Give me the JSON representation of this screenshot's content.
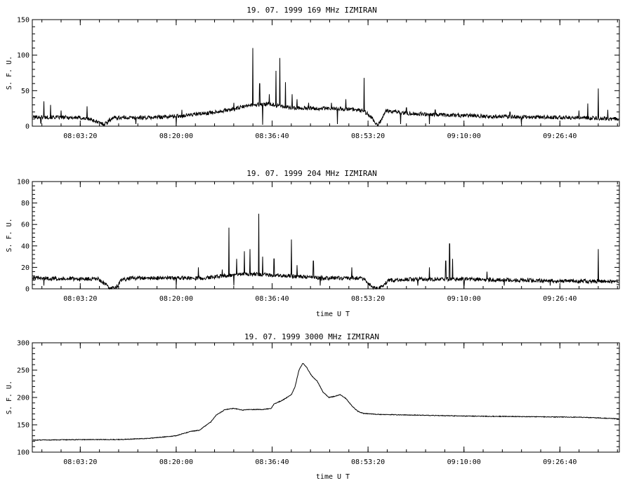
{
  "chart_data": [
    {
      "type": "line",
      "title": "19. 07. 1999   169 MHz   IZMIRAN",
      "ylabel": "S. F. U.",
      "xlabel": "",
      "ylim": [
        0,
        150
      ],
      "yticks": [
        0,
        50,
        100,
        150
      ],
      "xlim": [
        "07:55:00",
        "09:37:00"
      ],
      "xticks": [
        "08:03:20",
        "08:20:00",
        "08:36:40",
        "08:53:20",
        "09:10:00",
        "09:26:40"
      ],
      "grid": false,
      "baseline": [
        [
          "07:55:00",
          13
        ],
        [
          "08:03:00",
          12
        ],
        [
          "08:05:00",
          10
        ],
        [
          "08:06:30",
          5
        ],
        [
          "08:07:30",
          3
        ],
        [
          "08:09:00",
          12
        ],
        [
          "08:15:00",
          12
        ],
        [
          "08:20:00",
          14
        ],
        [
          "08:25:00",
          18
        ],
        [
          "08:30:00",
          24
        ],
        [
          "08:33:00",
          30
        ],
        [
          "08:36:00",
          31
        ],
        [
          "08:40:00",
          26
        ],
        [
          "08:45:00",
          25
        ],
        [
          "08:50:00",
          24
        ],
        [
          "08:52:30",
          22
        ],
        [
          "08:54:00",
          12
        ],
        [
          "08:55:00",
          0
        ],
        [
          "08:56:30",
          22
        ],
        [
          "09:00:00",
          18
        ],
        [
          "09:10:00",
          15
        ],
        [
          "09:20:00",
          13
        ],
        [
          "09:30:00",
          12
        ],
        [
          "09:37:00",
          10
        ]
      ],
      "spikes": [
        [
          "07:57:00",
          35
        ],
        [
          "07:58:10",
          30
        ],
        [
          "08:00:00",
          22
        ],
        [
          "08:04:30",
          28
        ],
        [
          "08:21:00",
          23
        ],
        [
          "08:30:00",
          33
        ],
        [
          "08:33:20",
          110
        ],
        [
          "08:34:30",
          60
        ],
        [
          "08:36:10",
          45
        ],
        [
          "08:37:20",
          78
        ],
        [
          "08:38:00",
          96
        ],
        [
          "08:39:00",
          62
        ],
        [
          "08:40:10",
          45
        ],
        [
          "08:41:00",
          38
        ],
        [
          "08:43:00",
          33
        ],
        [
          "08:47:00",
          33
        ],
        [
          "08:49:30",
          38
        ],
        [
          "08:52:40",
          68
        ],
        [
          "09:00:00",
          26
        ],
        [
          "09:05:00",
          23
        ],
        [
          "09:18:00",
          20
        ],
        [
          "09:30:00",
          22
        ],
        [
          "09:31:30",
          32
        ],
        [
          "09:33:20",
          53
        ],
        [
          "09:35:00",
          23
        ]
      ],
      "dips": [
        [
          "07:56:30",
          4
        ],
        [
          "08:08:00",
          2
        ],
        [
          "08:13:00",
          3
        ],
        [
          "08:20:00",
          2
        ],
        [
          "08:35:00",
          2
        ],
        [
          "08:48:00",
          3
        ],
        [
          "08:59:00",
          3
        ],
        [
          "09:04:00",
          3
        ],
        [
          "09:20:00",
          3
        ]
      ]
    },
    {
      "type": "line",
      "title": "19. 07. 1999   204 MHz   IZMIRAN",
      "ylabel": "S. F. U.",
      "xlabel": "time  U T",
      "ylim": [
        0,
        100
      ],
      "yticks": [
        0,
        20,
        40,
        60,
        80,
        100
      ],
      "xlim": [
        "07:55:00",
        "09:37:00"
      ],
      "xticks": [
        "08:03:20",
        "08:20:00",
        "08:36:40",
        "08:53:20",
        "09:10:00",
        "09:26:40"
      ],
      "grid": false,
      "baseline": [
        [
          "07:55:00",
          10
        ],
        [
          "08:06:30",
          9
        ],
        [
          "08:07:30",
          5
        ],
        [
          "08:08:30",
          0
        ],
        [
          "08:09:30",
          1
        ],
        [
          "08:10:30",
          8
        ],
        [
          "08:12:00",
          10
        ],
        [
          "08:25:00",
          10
        ],
        [
          "08:28:00",
          12
        ],
        [
          "08:32:00",
          14
        ],
        [
          "08:36:00",
          13
        ],
        [
          "08:40:00",
          12
        ],
        [
          "08:45:00",
          10
        ],
        [
          "08:52:00",
          10
        ],
        [
          "08:53:00",
          8
        ],
        [
          "08:54:00",
          2
        ],
        [
          "08:55:00",
          0
        ],
        [
          "08:57:00",
          8
        ],
        [
          "09:00:00",
          9
        ],
        [
          "09:10:00",
          9
        ],
        [
          "09:20:00",
          8
        ],
        [
          "09:30:00",
          7
        ],
        [
          "09:37:00",
          7
        ]
      ],
      "spikes": [
        [
          "08:23:50",
          20
        ],
        [
          "08:28:00",
          18
        ],
        [
          "08:29:10",
          57
        ],
        [
          "08:30:30",
          28
        ],
        [
          "08:31:50",
          35
        ],
        [
          "08:32:50",
          37
        ],
        [
          "08:34:20",
          70
        ],
        [
          "08:35:00",
          30
        ],
        [
          "08:37:00",
          28
        ],
        [
          "08:40:00",
          46
        ],
        [
          "08:41:00",
          22
        ],
        [
          "08:43:50",
          26
        ],
        [
          "08:50:30",
          20
        ],
        [
          "09:04:00",
          20
        ],
        [
          "09:06:50",
          26
        ],
        [
          "09:07:30",
          42
        ],
        [
          "09:08:00",
          28
        ],
        [
          "09:14:00",
          16
        ],
        [
          "09:33:20",
          37
        ]
      ],
      "dips": [
        [
          "07:57:00",
          3
        ],
        [
          "08:20:00",
          3
        ],
        [
          "08:30:00",
          3
        ],
        [
          "08:45:00",
          3
        ],
        [
          "09:02:00",
          3
        ],
        [
          "09:10:00",
          3
        ],
        [
          "09:17:00",
          3
        ],
        [
          "09:25:00",
          3
        ]
      ]
    },
    {
      "type": "line",
      "title": "19. 07. 1999   3000 MHz   IZMIRAN",
      "ylabel": "S. F. U.",
      "xlabel": "time  U T",
      "ylim": [
        100,
        300
      ],
      "yticks": [
        100,
        150,
        200,
        250,
        300
      ],
      "xlim": [
        "07:55:00",
        "09:37:00"
      ],
      "xticks": [
        "08:03:20",
        "08:20:00",
        "08:36:40",
        "08:53:20",
        "09:10:00",
        "09:26:40"
      ],
      "grid": false,
      "baseline": [
        [
          "07:55:00",
          122
        ],
        [
          "08:05:00",
          123
        ],
        [
          "08:10:00",
          123
        ],
        [
          "08:15:00",
          125
        ],
        [
          "08:20:00",
          130
        ],
        [
          "08:22:30",
          138
        ],
        [
          "08:24:00",
          140
        ],
        [
          "08:26:00",
          155
        ],
        [
          "08:27:00",
          168
        ],
        [
          "08:28:30",
          178
        ],
        [
          "08:30:00",
          180
        ],
        [
          "08:31:30",
          177
        ],
        [
          "08:33:00",
          178
        ],
        [
          "08:35:00",
          178
        ],
        [
          "08:36:30",
          180
        ],
        [
          "08:37:00",
          188
        ],
        [
          "08:38:30",
          195
        ],
        [
          "08:40:00",
          205
        ],
        [
          "08:40:40",
          220
        ],
        [
          "08:41:20",
          250
        ],
        [
          "08:42:00",
          263
        ],
        [
          "08:42:40",
          255
        ],
        [
          "08:43:30",
          240
        ],
        [
          "08:44:30",
          230
        ],
        [
          "08:45:30",
          210
        ],
        [
          "08:46:30",
          200
        ],
        [
          "08:47:30",
          202
        ],
        [
          "08:48:30",
          205
        ],
        [
          "08:49:30",
          198
        ],
        [
          "08:50:30",
          185
        ],
        [
          "08:51:30",
          175
        ],
        [
          "08:52:30",
          171
        ],
        [
          "08:55:00",
          169
        ],
        [
          "09:00:00",
          168
        ],
        [
          "09:10:00",
          166
        ],
        [
          "09:20:00",
          165
        ],
        [
          "09:30:00",
          164
        ],
        [
          "09:37:00",
          161
        ]
      ],
      "spikes": [],
      "dips": []
    }
  ]
}
